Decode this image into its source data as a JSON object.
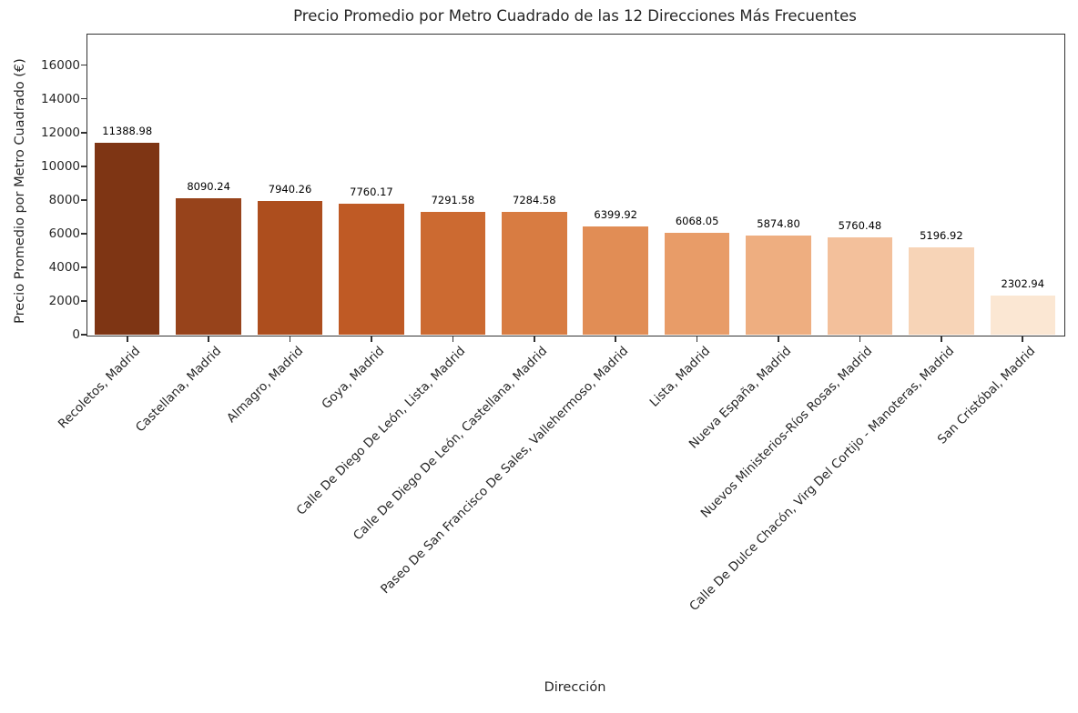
{
  "chart_data": {
    "type": "bar",
    "title": "Precio Promedio por Metro Cuadrado de las 12 Direcciones Más Frecuentes",
    "xlabel": "Dirección",
    "ylabel": "Precio Promedio por Metro Cuadrado (€)",
    "categories": [
      "Recoletos, Madrid",
      "Castellana, Madrid",
      "Almagro, Madrid",
      "Goya, Madrid",
      "Calle De Diego De León, Lista, Madrid",
      "Calle De Diego De León, Castellana, Madrid",
      "Paseo De San Francisco De Sales, Vallehermoso, Madrid",
      "Lista, Madrid",
      "Nueva España, Madrid",
      "Nuevos Ministerios-Ríos Rosas, Madrid",
      "Calle De Dulce Chacón, Virg Del Cortijo - Manoteras, Madrid",
      "San Cristóbal, Madrid"
    ],
    "values": [
      11388.98,
      8090.24,
      7940.26,
      7760.17,
      7291.58,
      7284.58,
      6399.92,
      6068.05,
      5874.8,
      5760.48,
      5196.92,
      2302.94
    ],
    "value_labels": [
      "11388.98",
      "8090.24",
      "7940.26",
      "7760.17",
      "7291.58",
      "7284.58",
      "6399.92",
      "6068.05",
      "5874.80",
      "5760.48",
      "5196.92",
      "2302.94"
    ],
    "bar_colors": [
      "#7e3514",
      "#97431b",
      "#ad4e1e",
      "#bf5a25",
      "#cc6a31",
      "#d87c42",
      "#e18d55",
      "#e89c68",
      "#eeae80",
      "#f3c09b",
      "#f7d4b7",
      "#fbe7d3"
    ],
    "yticks": [
      0,
      2000,
      4000,
      6000,
      8000,
      10000,
      12000,
      14000,
      16000
    ],
    "ylim": [
      0,
      17870
    ],
    "grid": false,
    "legend": null,
    "x_tick_rotation_deg": 45,
    "bar_relative_width": 0.8,
    "spine_color": "#333333"
  }
}
